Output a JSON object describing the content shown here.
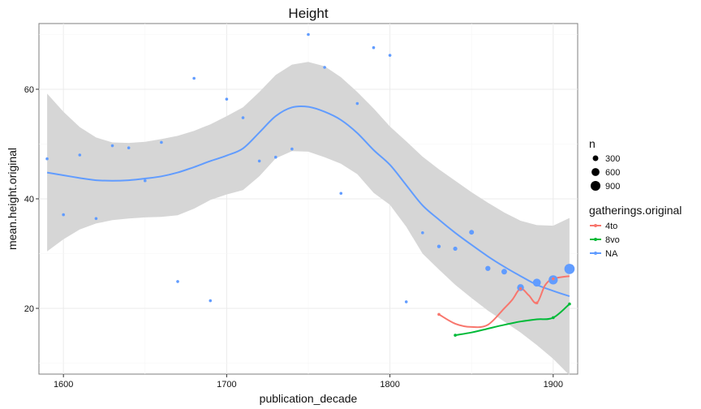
{
  "chart_data": {
    "type": "scatter",
    "title": "Height",
    "xlabel": "publication_decade",
    "ylabel": "mean.height.original",
    "xlim": [
      1585,
      1915
    ],
    "ylim": [
      8,
      72
    ],
    "xticks": [
      1600,
      1700,
      1800,
      1900
    ],
    "yticks": [
      20,
      40,
      60
    ],
    "grid": true,
    "legend_position": "right",
    "colors": {
      "4to": "#F8766D",
      "8vo": "#00BA38",
      "NA": "#619CFF",
      "band": "#D6D6D6"
    },
    "size_legend": {
      "title": "n",
      "values": [
        300,
        600,
        900
      ]
    },
    "color_legend": {
      "title": "gatherings.original",
      "entries": [
        "4to",
        "8vo",
        "NA"
      ]
    },
    "points": [
      {
        "group": "NA",
        "x": 1590,
        "y": 47.3,
        "n": 30
      },
      {
        "group": "NA",
        "x": 1600,
        "y": 37.1,
        "n": 30
      },
      {
        "group": "NA",
        "x": 1610,
        "y": 48.0,
        "n": 30
      },
      {
        "group": "NA",
        "x": 1620,
        "y": 36.4,
        "n": 30
      },
      {
        "group": "NA",
        "x": 1630,
        "y": 49.7,
        "n": 30
      },
      {
        "group": "NA",
        "x": 1640,
        "y": 49.3,
        "n": 30
      },
      {
        "group": "NA",
        "x": 1650,
        "y": 43.3,
        "n": 30
      },
      {
        "group": "NA",
        "x": 1660,
        "y": 50.3,
        "n": 30
      },
      {
        "group": "NA",
        "x": 1670,
        "y": 24.9,
        "n": 30
      },
      {
        "group": "NA",
        "x": 1680,
        "y": 62.0,
        "n": 30
      },
      {
        "group": "NA",
        "x": 1690,
        "y": 21.4,
        "n": 30
      },
      {
        "group": "NA",
        "x": 1700,
        "y": 58.2,
        "n": 30
      },
      {
        "group": "NA",
        "x": 1710,
        "y": 54.8,
        "n": 30
      },
      {
        "group": "NA",
        "x": 1720,
        "y": 46.9,
        "n": 30
      },
      {
        "group": "NA",
        "x": 1730,
        "y": 47.6,
        "n": 30
      },
      {
        "group": "NA",
        "x": 1740,
        "y": 49.1,
        "n": 30
      },
      {
        "group": "NA",
        "x": 1750,
        "y": 70.0,
        "n": 80
      },
      {
        "group": "NA",
        "x": 1760,
        "y": 64.0,
        "n": 30
      },
      {
        "group": "NA",
        "x": 1770,
        "y": 41.0,
        "n": 30
      },
      {
        "group": "NA",
        "x": 1780,
        "y": 57.4,
        "n": 30
      },
      {
        "group": "NA",
        "x": 1790,
        "y": 67.6,
        "n": 50
      },
      {
        "group": "NA",
        "x": 1800,
        "y": 66.2,
        "n": 50
      },
      {
        "group": "NA",
        "x": 1810,
        "y": 21.2,
        "n": 80
      },
      {
        "group": "NA",
        "x": 1820,
        "y": 33.8,
        "n": 80
      },
      {
        "group": "NA",
        "x": 1830,
        "y": 31.3,
        "n": 120
      },
      {
        "group": "NA",
        "x": 1840,
        "y": 30.9,
        "n": 170
      },
      {
        "group": "NA",
        "x": 1850,
        "y": 33.9,
        "n": 220
      },
      {
        "group": "NA",
        "x": 1860,
        "y": 27.3,
        "n": 250
      },
      {
        "group": "NA",
        "x": 1870,
        "y": 26.7,
        "n": 300
      },
      {
        "group": "NA",
        "x": 1880,
        "y": 23.8,
        "n": 450
      },
      {
        "group": "NA",
        "x": 1890,
        "y": 24.7,
        "n": 600
      },
      {
        "group": "NA",
        "x": 1900,
        "y": 25.2,
        "n": 800
      },
      {
        "group": "NA",
        "x": 1910,
        "y": 27.2,
        "n": 1000
      },
      {
        "group": "4to",
        "x": 1830,
        "y": 18.9,
        "n": 10
      },
      {
        "group": "4to",
        "x": 1880,
        "y": 23.6,
        "n": 10
      },
      {
        "group": "4to",
        "x": 1890,
        "y": 21.0,
        "n": 10
      },
      {
        "group": "4to",
        "x": 1900,
        "y": 25.4,
        "n": 10
      },
      {
        "group": "8vo",
        "x": 1840,
        "y": 15.1,
        "n": 10
      },
      {
        "group": "8vo",
        "x": 1900,
        "y": 18.3,
        "n": 10
      },
      {
        "group": "8vo",
        "x": 1910,
        "y": 20.8,
        "n": 10
      }
    ],
    "smooth_lines": [
      {
        "group": "NA",
        "x": [
          1590,
          1600,
          1610,
          1620,
          1630,
          1640,
          1650,
          1660,
          1670,
          1680,
          1690,
          1700,
          1710,
          1720,
          1730,
          1740,
          1750,
          1760,
          1770,
          1780,
          1790,
          1800,
          1810,
          1820,
          1830,
          1840,
          1850,
          1860,
          1870,
          1880,
          1890,
          1900,
          1910
        ],
        "y": [
          44.8,
          44.3,
          43.8,
          43.4,
          43.3,
          43.4,
          43.7,
          44.1,
          44.8,
          45.8,
          46.9,
          47.9,
          49.2,
          52.1,
          55.1,
          56.7,
          56.8,
          55.9,
          54.4,
          52.0,
          48.9,
          46.2,
          42.5,
          38.8,
          36.2,
          33.8,
          31.6,
          29.5,
          27.6,
          25.9,
          24.3,
          23.2,
          22.2
        ]
      },
      {
        "group": "4to",
        "x": [
          1830,
          1840,
          1850,
          1860,
          1870,
          1875,
          1880,
          1885,
          1890,
          1895,
          1900,
          1910
        ],
        "y": [
          18.9,
          17.2,
          16.6,
          17.0,
          20.0,
          21.6,
          23.6,
          22.4,
          21.0,
          24.2,
          25.4,
          25.9
        ]
      },
      {
        "group": "8vo",
        "x": [
          1840,
          1850,
          1860,
          1870,
          1880,
          1890,
          1900,
          1910
        ],
        "y": [
          15.1,
          15.6,
          16.3,
          17.0,
          17.6,
          18.0,
          18.3,
          20.8
        ]
      }
    ],
    "confidence_band": {
      "x": [
        1590,
        1600,
        1610,
        1620,
        1630,
        1640,
        1650,
        1660,
        1670,
        1680,
        1690,
        1700,
        1710,
        1720,
        1730,
        1740,
        1750,
        1760,
        1770,
        1780,
        1790,
        1800,
        1810,
        1820,
        1830,
        1840,
        1850,
        1860,
        1870,
        1880,
        1890,
        1900,
        1910
      ],
      "upper": [
        59.2,
        55.9,
        53.1,
        51.2,
        50.3,
        50.2,
        50.4,
        50.9,
        51.5,
        52.4,
        53.6,
        55.1,
        56.7,
        59.5,
        62.6,
        64.5,
        65.0,
        64.2,
        62.2,
        59.5,
        56.5,
        53.2,
        50.5,
        47.7,
        45.4,
        43.3,
        41.2,
        39.3,
        37.5,
        36.0,
        35.2,
        35.1,
        36.5
      ],
      "lower": [
        30.4,
        32.6,
        34.4,
        35.5,
        36.1,
        36.4,
        36.6,
        36.7,
        37.0,
        38.2,
        39.8,
        40.8,
        41.6,
        44.1,
        47.4,
        48.7,
        48.6,
        47.6,
        46.4,
        44.5,
        41.1,
        38.9,
        34.9,
        30.0,
        27.1,
        24.3,
        21.9,
        19.6,
        17.6,
        15.6,
        13.3,
        10.8,
        7.8
      ]
    }
  }
}
